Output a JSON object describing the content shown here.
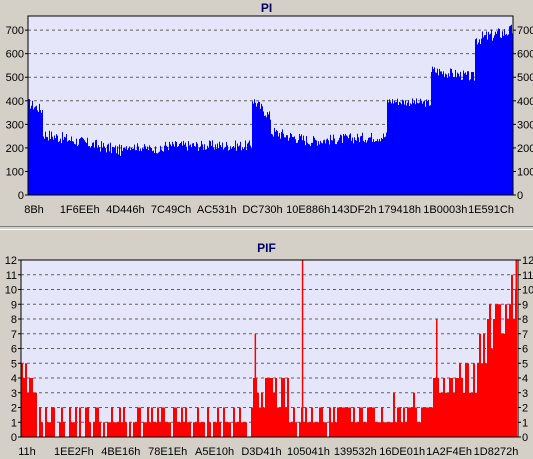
{
  "chart_data": [
    {
      "type": "area",
      "title": "PI",
      "color": "#0000ff",
      "ylim": [
        0,
        760
      ],
      "y_ticks": [
        0,
        100,
        200,
        300,
        400,
        500,
        600,
        700
      ],
      "x_tick_labels": [
        "8Bh",
        "1F6EEh",
        "4D446h",
        "7C49Ch",
        "AC531h",
        "DC730h",
        "10E886h",
        "143DF2h",
        "179418h",
        "1B0003h",
        "1E591Ch"
      ],
      "grid": true,
      "segments": [
        {
          "from": 0.0,
          "to": 0.03,
          "start": 390,
          "end": 360,
          "noise": 45
        },
        {
          "from": 0.03,
          "to": 0.2,
          "start": 260,
          "end": 185,
          "noise": 50
        },
        {
          "from": 0.2,
          "to": 0.28,
          "start": 210,
          "end": 190,
          "noise": 35
        },
        {
          "from": 0.28,
          "to": 0.46,
          "start": 210,
          "end": 210,
          "noise": 45
        },
        {
          "from": 0.46,
          "to": 0.5,
          "start": 410,
          "end": 330,
          "noise": 45
        },
        {
          "from": 0.5,
          "to": 0.58,
          "start": 270,
          "end": 230,
          "noise": 50
        },
        {
          "from": 0.58,
          "to": 0.74,
          "start": 230,
          "end": 250,
          "noise": 45
        },
        {
          "from": 0.74,
          "to": 0.83,
          "start": 400,
          "end": 390,
          "noise": 35
        },
        {
          "from": 0.83,
          "to": 0.92,
          "start": 530,
          "end": 500,
          "noise": 45
        },
        {
          "from": 0.92,
          "to": 1.0,
          "start": 660,
          "end": 700,
          "noise": 55
        }
      ]
    },
    {
      "type": "bar",
      "title": "PIF",
      "color": "#ff0000",
      "ylim": [
        0,
        12
      ],
      "y_ticks": [
        0,
        1,
        2,
        3,
        4,
        5,
        6,
        7,
        8,
        9,
        10,
        11,
        12
      ],
      "x_tick_labels": [
        "11h",
        "1EE2Fh",
        "4BE16h",
        "78E1Eh",
        "A5E10h",
        "D3D41h",
        "105041h",
        "139532h",
        "16DE01h",
        "1A2F4Eh",
        "1D8272h"
      ],
      "grid": true,
      "segments": [
        {
          "from": 0.0,
          "to": 0.03,
          "start": 4,
          "end": 3,
          "noise": 2
        },
        {
          "from": 0.03,
          "to": 0.46,
          "start": 1,
          "end": 1,
          "noise": 2
        },
        {
          "from": 0.46,
          "to": 0.54,
          "start": 3,
          "end": 3,
          "noise": 3
        },
        {
          "from": 0.54,
          "to": 0.83,
          "start": 1,
          "end": 2,
          "noise": 2
        },
        {
          "from": 0.83,
          "to": 0.92,
          "start": 3,
          "end": 4,
          "noise": 3
        },
        {
          "from": 0.92,
          "to": 1.0,
          "start": 6,
          "end": 10,
          "noise": 4
        }
      ],
      "spikes": [
        {
          "x": 0.565,
          "value": 12
        },
        {
          "x": 0.47,
          "value": 7
        },
        {
          "x": 0.835,
          "value": 8
        },
        {
          "x": 0.995,
          "value": 12
        }
      ]
    }
  ]
}
